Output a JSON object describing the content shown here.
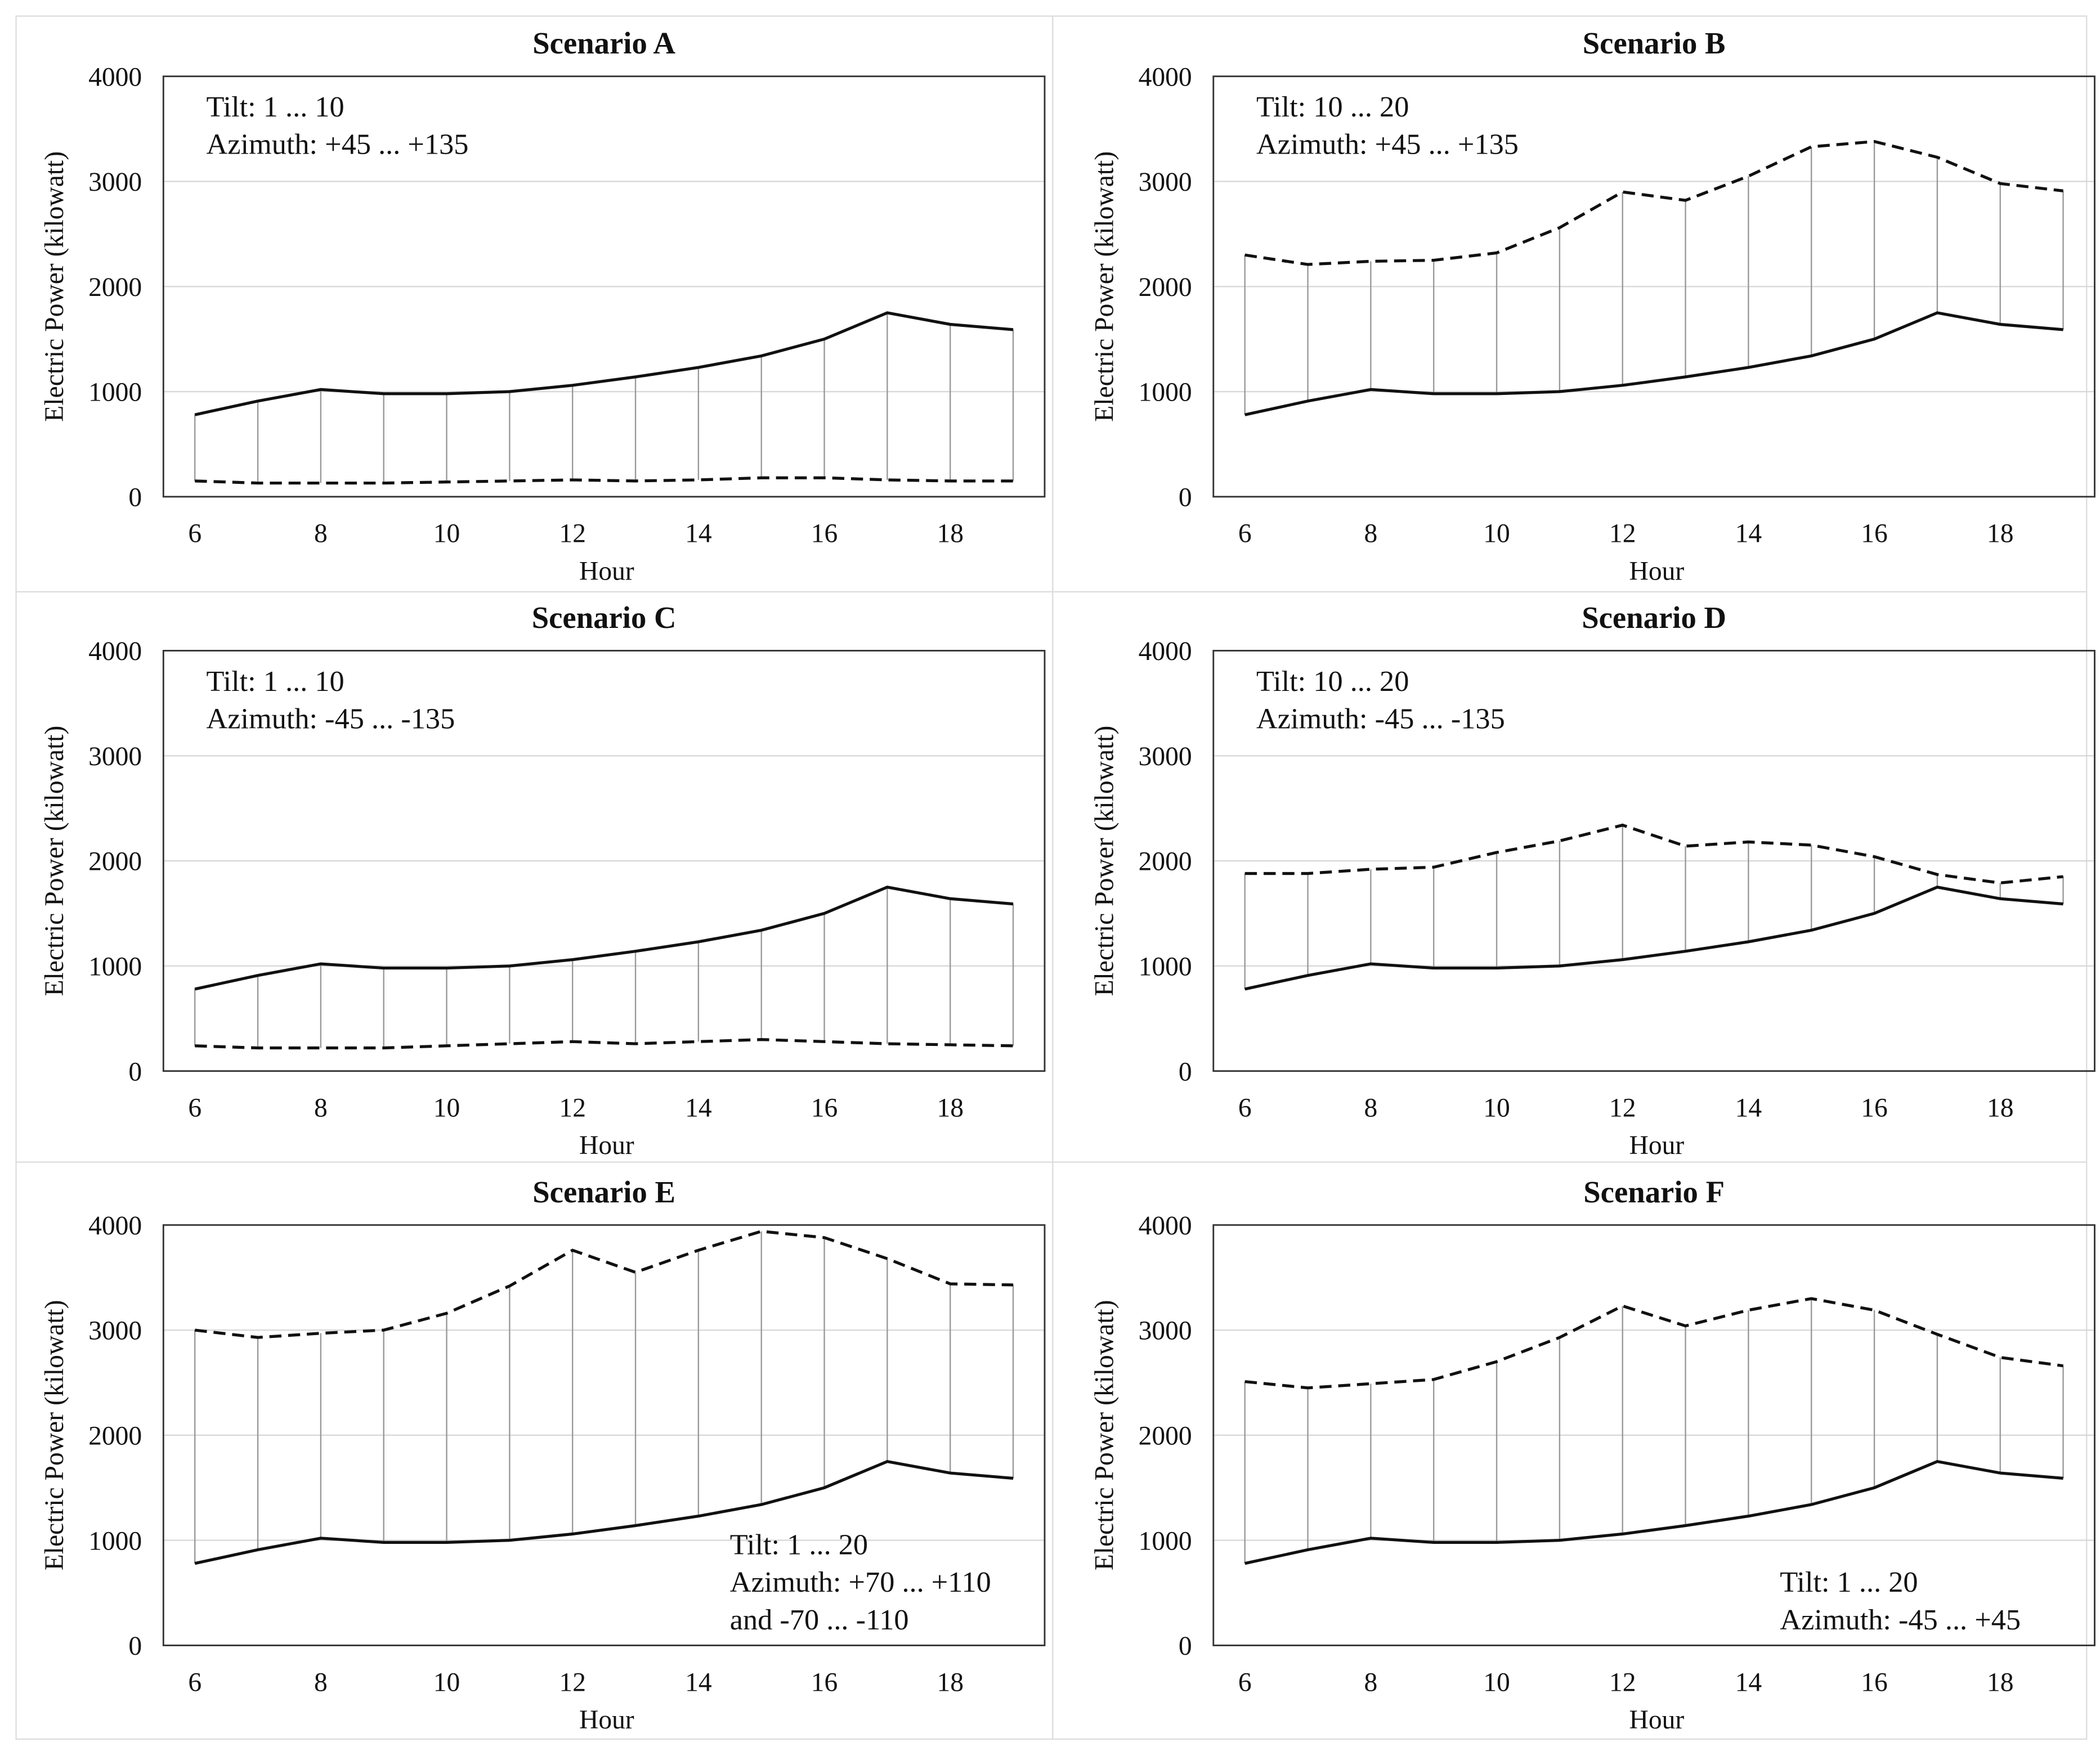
{
  "chart_data": [
    {
      "type": "line",
      "title": "Scenario A",
      "xlabel": "Hour",
      "ylabel": "Electric Power (kilowatt)",
      "x": [
        6,
        7,
        8,
        9,
        10,
        11,
        12,
        13,
        14,
        15,
        16,
        17,
        18,
        19
      ],
      "series": [
        {
          "color": "#111111",
          "dashed": false,
          "values": [
            780,
            910,
            1020,
            980,
            980,
            1000,
            1060,
            1140,
            1230,
            1340,
            1500,
            1750,
            1640,
            1590
          ]
        },
        {
          "color": "#111111",
          "dashed": true,
          "values": [
            150,
            130,
            130,
            130,
            140,
            150,
            160,
            150,
            160,
            180,
            180,
            160,
            150,
            150
          ]
        }
      ],
      "xlim": [
        5.5,
        19.5
      ],
      "ylim": [
        0,
        4000
      ],
      "xticks": [
        6,
        8,
        10,
        12,
        14,
        16,
        18
      ],
      "yticks": [
        0,
        1000,
        2000,
        3000,
        4000
      ],
      "grid": true,
      "droplines": true,
      "annotations": [
        "Tilt: 1 ... 10",
        "Azimuth: +45 ... +135"
      ],
      "annotation_corner": "top-left"
    },
    {
      "type": "line",
      "title": "Scenario B",
      "xlabel": "Hour",
      "ylabel": "Electric Power (kilowatt)",
      "x": [
        6,
        7,
        8,
        9,
        10,
        11,
        12,
        13,
        14,
        15,
        16,
        17,
        18,
        19
      ],
      "series": [
        {
          "color": "#111111",
          "dashed": false,
          "values": [
            780,
            910,
            1020,
            980,
            980,
            1000,
            1060,
            1140,
            1230,
            1340,
            1500,
            1750,
            1640,
            1590
          ]
        },
        {
          "color": "#111111",
          "dashed": true,
          "values": [
            2300,
            2210,
            2240,
            2250,
            2320,
            2560,
            2900,
            2820,
            3050,
            3330,
            3380,
            3230,
            2980,
            2910
          ]
        }
      ],
      "xlim": [
        5.5,
        19.5
      ],
      "ylim": [
        0,
        4000
      ],
      "xticks": [
        6,
        8,
        10,
        12,
        14,
        16,
        18
      ],
      "yticks": [
        0,
        1000,
        2000,
        3000,
        4000
      ],
      "grid": true,
      "droplines": true,
      "annotations": [
        "Tilt: 10 ... 20",
        "Azimuth: +45 ... +135"
      ],
      "annotation_corner": "top-left"
    },
    {
      "type": "line",
      "title": "Scenario C",
      "xlabel": "Hour",
      "ylabel": "Electric Power (kilowatt)",
      "x": [
        6,
        7,
        8,
        9,
        10,
        11,
        12,
        13,
        14,
        15,
        16,
        17,
        18,
        19
      ],
      "series": [
        {
          "color": "#111111",
          "dashed": false,
          "values": [
            780,
            910,
            1020,
            980,
            980,
            1000,
            1060,
            1140,
            1230,
            1340,
            1500,
            1750,
            1640,
            1590
          ]
        },
        {
          "color": "#111111",
          "dashed": true,
          "values": [
            240,
            220,
            220,
            220,
            240,
            260,
            280,
            260,
            280,
            300,
            280,
            260,
            250,
            240
          ]
        }
      ],
      "xlim": [
        5.5,
        19.5
      ],
      "ylim": [
        0,
        4000
      ],
      "xticks": [
        6,
        8,
        10,
        12,
        14,
        16,
        18
      ],
      "yticks": [
        0,
        1000,
        2000,
        3000,
        4000
      ],
      "grid": true,
      "droplines": true,
      "annotations": [
        "Tilt: 1 ... 10",
        "Azimuth: -45 ... -135"
      ],
      "annotation_corner": "top-left"
    },
    {
      "type": "line",
      "title": "Scenario D",
      "xlabel": "Hour",
      "ylabel": "Electric Power (kilowatt)",
      "x": [
        6,
        7,
        8,
        9,
        10,
        11,
        12,
        13,
        14,
        15,
        16,
        17,
        18,
        19
      ],
      "series": [
        {
          "color": "#111111",
          "dashed": false,
          "values": [
            780,
            910,
            1020,
            980,
            980,
            1000,
            1060,
            1140,
            1230,
            1340,
            1500,
            1750,
            1640,
            1590
          ]
        },
        {
          "color": "#111111",
          "dashed": true,
          "values": [
            1880,
            1880,
            1920,
            1940,
            2080,
            2190,
            2340,
            2140,
            2180,
            2150,
            2040,
            1870,
            1790,
            1850
          ]
        }
      ],
      "xlim": [
        5.5,
        19.5
      ],
      "ylim": [
        0,
        4000
      ],
      "xticks": [
        6,
        8,
        10,
        12,
        14,
        16,
        18
      ],
      "yticks": [
        0,
        1000,
        2000,
        3000,
        4000
      ],
      "grid": true,
      "droplines": true,
      "annotations": [
        "Tilt: 10 ... 20",
        "Azimuth: -45 ... -135"
      ],
      "annotation_corner": "top-left"
    },
    {
      "type": "line",
      "title": "Scenario E",
      "xlabel": "Hour",
      "ylabel": "Electric Power (kilowatt)",
      "x": [
        6,
        7,
        8,
        9,
        10,
        11,
        12,
        13,
        14,
        15,
        16,
        17,
        18,
        19
      ],
      "series": [
        {
          "color": "#111111",
          "dashed": false,
          "values": [
            780,
            910,
            1020,
            980,
            980,
            1000,
            1060,
            1140,
            1230,
            1340,
            1500,
            1750,
            1640,
            1590
          ]
        },
        {
          "color": "#111111",
          "dashed": true,
          "values": [
            3000,
            2930,
            2970,
            3000,
            3160,
            3420,
            3760,
            3550,
            3760,
            3940,
            3880,
            3680,
            3440,
            3430
          ]
        }
      ],
      "xlim": [
        5.5,
        19.5
      ],
      "ylim": [
        0,
        4000
      ],
      "xticks": [
        6,
        8,
        10,
        12,
        14,
        16,
        18
      ],
      "yticks": [
        0,
        1000,
        2000,
        3000,
        4000
      ],
      "grid": true,
      "droplines": true,
      "annotations": [
        "Tilt: 1 ... 20",
        "Azimuth: +70 ... +110",
        "and -70 ... -110"
      ],
      "annotation_corner": "bottom-right"
    },
    {
      "type": "line",
      "title": "Scenario F",
      "xlabel": "Hour",
      "ylabel": "Electric Power (kilowatt)",
      "x": [
        6,
        7,
        8,
        9,
        10,
        11,
        12,
        13,
        14,
        15,
        16,
        17,
        18,
        19
      ],
      "series": [
        {
          "color": "#111111",
          "dashed": false,
          "values": [
            780,
            910,
            1020,
            980,
            980,
            1000,
            1060,
            1140,
            1230,
            1340,
            1500,
            1750,
            1640,
            1590
          ]
        },
        {
          "color": "#111111",
          "dashed": true,
          "values": [
            2510,
            2450,
            2490,
            2530,
            2700,
            2930,
            3230,
            3040,
            3190,
            3300,
            3190,
            2960,
            2740,
            2660
          ]
        }
      ],
      "xlim": [
        5.5,
        19.5
      ],
      "ylim": [
        0,
        4000
      ],
      "xticks": [
        6,
        8,
        10,
        12,
        14,
        16,
        18
      ],
      "yticks": [
        0,
        1000,
        2000,
        3000,
        4000
      ],
      "grid": true,
      "droplines": true,
      "annotations": [
        "Tilt: 1 ... 20",
        "Azimuth: -45 ... +45"
      ],
      "annotation_corner": "bottom-right"
    }
  ]
}
